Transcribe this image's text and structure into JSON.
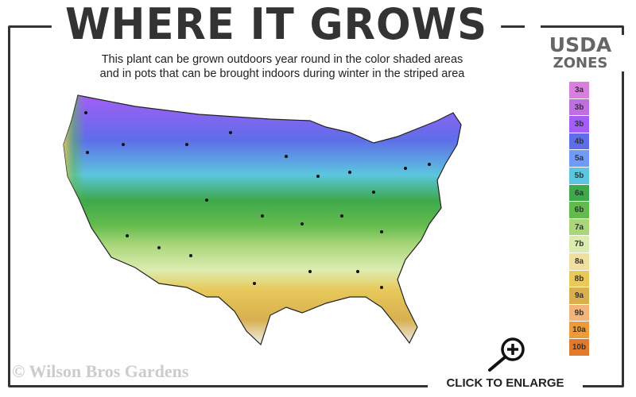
{
  "title": "WHERE IT GROWS",
  "subtitle_line1": "This plant can be grown outdoors year round in the color shaded areas",
  "subtitle_line2": "and in pots that can be brought indoors during winter in the striped area",
  "legend": {
    "heading1": "USDA",
    "heading2": "ZONES",
    "zones": [
      {
        "label": "3a",
        "color": "#d87fe0"
      },
      {
        "label": "3b",
        "color": "#bf6fe0"
      },
      {
        "label": "3b",
        "color": "#a35ef5"
      },
      {
        "label": "4b",
        "color": "#5e6ee8"
      },
      {
        "label": "5a",
        "color": "#6f9af7"
      },
      {
        "label": "5b",
        "color": "#5cc6de"
      },
      {
        "label": "6a",
        "color": "#3da84c"
      },
      {
        "label": "6b",
        "color": "#63bb4d"
      },
      {
        "label": "7a",
        "color": "#a9d67a"
      },
      {
        "label": "7b",
        "color": "#dcecb0"
      },
      {
        "label": "8a",
        "color": "#efe0a2"
      },
      {
        "label": "8b",
        "color": "#e8c95a"
      },
      {
        "label": "9a",
        "color": "#d8b050"
      },
      {
        "label": "9b",
        "color": "#f3b47c"
      },
      {
        "label": "10a",
        "color": "#ec9a3a"
      },
      {
        "label": "10b",
        "color": "#e27a2c"
      }
    ]
  },
  "copyright": "© Wilson Bros Gardens",
  "enlarge_label": "CLICK TO ENLARGE",
  "icons": {
    "enlarge": "magnifier-plus-icon"
  }
}
